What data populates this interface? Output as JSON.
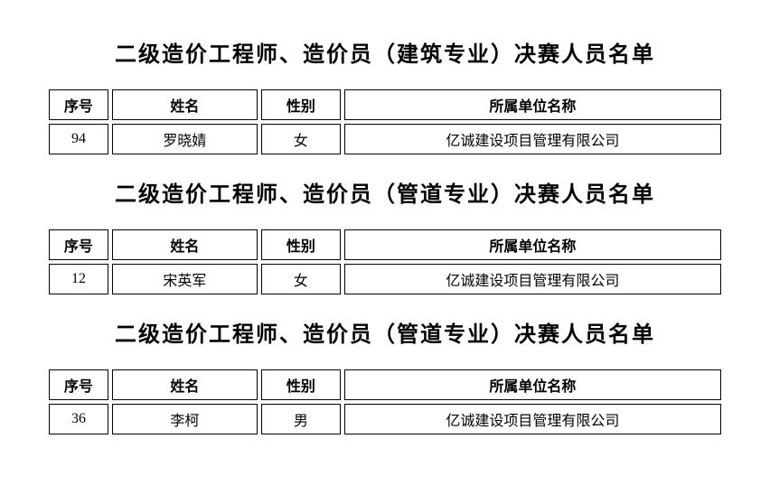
{
  "sections": [
    {
      "title": "二级造价工程师、造价员（建筑专业）决赛人员名单",
      "columns": [
        "序号",
        "姓名",
        "性别",
        "所属单位名称"
      ],
      "row": {
        "seq": "94",
        "name": "罗晓婧",
        "gender": "女",
        "org": "亿诚建设项目管理有限公司"
      }
    },
    {
      "title": "二级造价工程师、造价员（管道专业）决赛人员名单",
      "columns": [
        "序号",
        "姓名",
        "性别",
        "所属单位名称"
      ],
      "row": {
        "seq": "12",
        "name": "宋英军",
        "gender": "女",
        "org": "亿诚建设项目管理有限公司"
      }
    },
    {
      "title": "二级造价工程师、造价员（管道专业）决赛人员名单",
      "columns": [
        "序号",
        "姓名",
        "性别",
        "所属单位名称"
      ],
      "row": {
        "seq": "36",
        "name": "李柯",
        "gender": "男",
        "org": "亿诚建设项目管理有限公司"
      }
    }
  ],
  "styling": {
    "background_color": "#ffffff",
    "text_color": "#000000",
    "border_color": "#000000",
    "title_fontsize": 24,
    "cell_fontsize": 16,
    "column_widths_pct": [
      9,
      22,
      12,
      57
    ]
  }
}
